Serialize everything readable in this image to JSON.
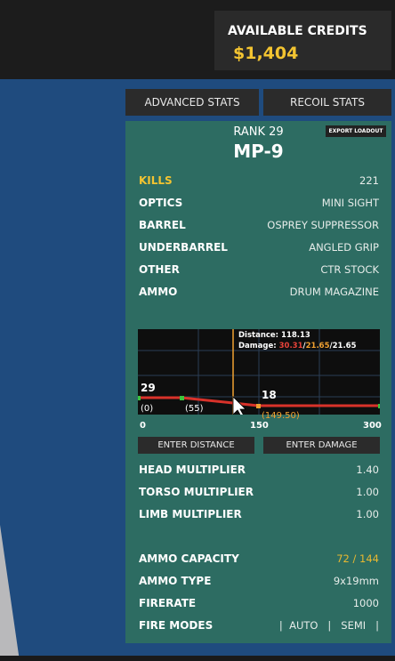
{
  "header": {
    "credits_label": "AVAILABLE CREDITS",
    "credits": "$1,404"
  },
  "tabs": [
    "ADVANCED STATS",
    "RECOIL STATS"
  ],
  "weapon": {
    "rank": "RANK 29",
    "name": "MP-9",
    "export": "EXPORT LOADOUT"
  },
  "attachments": [
    {
      "label": "KILLS",
      "value": "221"
    },
    {
      "label": "OPTICS",
      "value": "MINI SIGHT"
    },
    {
      "label": "BARREL",
      "value": "OSPREY SUPPRESSOR"
    },
    {
      "label": "UNDERBARREL",
      "value": "ANGLED GRIP"
    },
    {
      "label": "OTHER",
      "value": "CTR STOCK"
    },
    {
      "label": "AMMO",
      "value": "DRUM MAGAZINE"
    }
  ],
  "graph": {
    "distance": "Distance: 118.13",
    "damage_label": "Damage:",
    "damage": [
      "30.31",
      "21.65",
      "21.65"
    ],
    "max_damage": "29",
    "min_damage": "18",
    "start_range": "(0)",
    "drop_start": "(55)",
    "drop_end": "(149.50)",
    "axis": [
      "0",
      "150",
      "300"
    ]
  },
  "buttons": [
    "ENTER DISTANCE",
    "ENTER DAMAGE"
  ],
  "multipliers": [
    {
      "label": "HEAD MULTIPLIER",
      "value": "1.40"
    },
    {
      "label": "TORSO MULTIPLIER",
      "value": "1.00"
    },
    {
      "label": "LIMB MULTIPLIER",
      "value": "1.00"
    }
  ],
  "stats": [
    {
      "label": "AMMO CAPACITY",
      "value": "72 / 144"
    },
    {
      "label": "AMMO TYPE",
      "value": "9x19mm"
    },
    {
      "label": "FIRERATE",
      "value": "1000"
    }
  ],
  "fire_modes": {
    "label": "FIRE MODES",
    "modes": [
      "AUTO",
      "SEMI"
    ]
  }
}
